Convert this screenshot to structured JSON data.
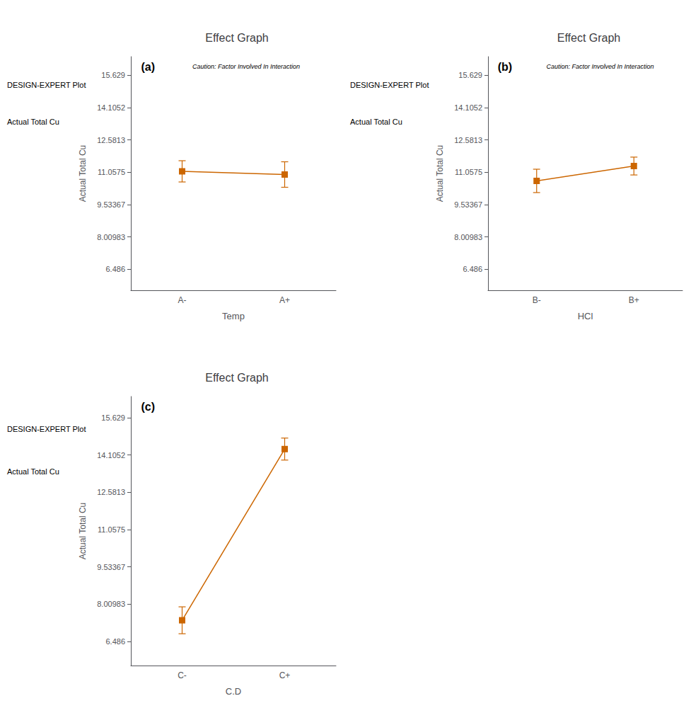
{
  "chart_data": [
    {
      "type": "line",
      "title": "Effect Graph",
      "xlabel": "Temp",
      "ylabel": "Actual Total Cu",
      "categories": [
        "A-",
        "A+"
      ],
      "values": [
        11.1,
        10.95
      ],
      "yerr": [
        0.5,
        0.6
      ],
      "ylim": [
        5.5,
        16.5
      ],
      "yticks": [
        6.486,
        8.00983,
        9.53367,
        11.0575,
        12.5813,
        14.1052,
        15.629
      ],
      "grid": false,
      "color": "#CC6600",
      "marker": "square",
      "panel_label": "(a)",
      "caution": "Caution: Factor Involved In Interaction",
      "side_labels": [
        "DESIGN-EXPERT Plot",
        "Actual Total Cu"
      ]
    },
    {
      "type": "line",
      "title": "Effect Graph",
      "xlabel": "HCl",
      "ylabel": "Actual Total Cu",
      "categories": [
        "B-",
        "B+"
      ],
      "values": [
        10.65,
        11.35
      ],
      "yerr": [
        0.55,
        0.42
      ],
      "ylim": [
        5.5,
        16.5
      ],
      "yticks": [
        6.486,
        8.00983,
        9.53367,
        11.0575,
        12.5813,
        14.1052,
        15.629
      ],
      "grid": false,
      "color": "#CC6600",
      "marker": "square",
      "panel_label": "(b)",
      "caution": "Caution: Factor Involved In Interaction",
      "side_labels": [
        "DESIGN-EXPERT Plot",
        "Actual Total Cu"
      ]
    },
    {
      "type": "line",
      "title": "Effect Graph",
      "xlabel": "C.D",
      "ylabel": "Actual Total Cu",
      "categories": [
        "C-",
        "C+"
      ],
      "values": [
        7.35,
        14.35
      ],
      "yerr": [
        0.55,
        0.45
      ],
      "ylim": [
        5.5,
        16.5
      ],
      "yticks": [
        6.486,
        8.00983,
        9.53367,
        11.0575,
        12.5813,
        14.1052,
        15.629
      ],
      "grid": false,
      "color": "#CC6600",
      "marker": "square",
      "panel_label": "(c)",
      "side_labels": [
        "DESIGN-EXPERT Plot",
        "Actual Total Cu"
      ]
    }
  ]
}
